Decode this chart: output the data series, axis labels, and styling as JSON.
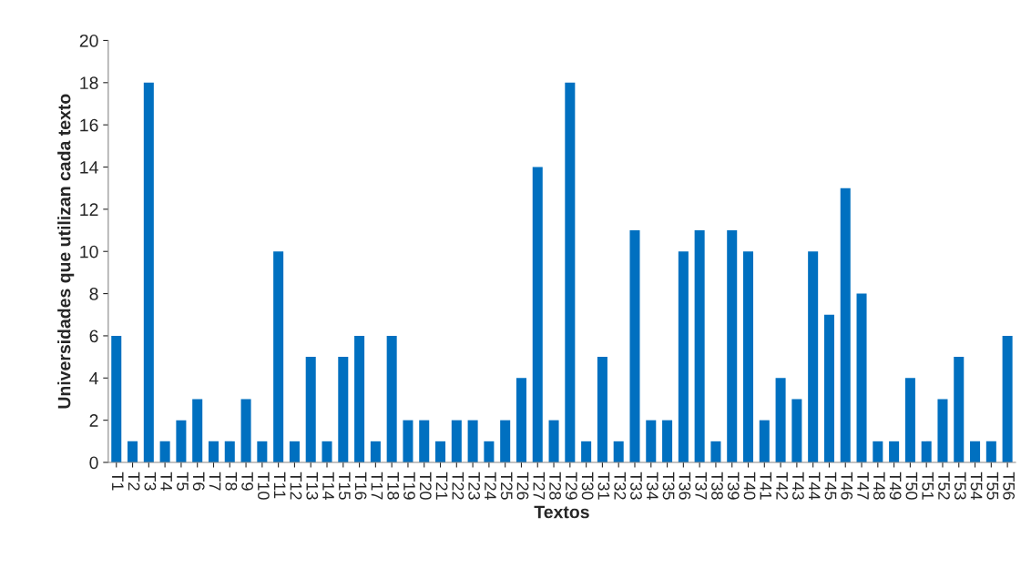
{
  "chart_data": {
    "type": "bar",
    "xlabel": "Textos",
    "ylabel": "Universidades que utilizan cada texto",
    "categories": [
      "T1",
      "T2",
      "T3",
      "T4",
      "T5",
      "T6",
      "T7",
      "T8",
      "T9",
      "T10",
      "T11",
      "T12",
      "T13",
      "T14",
      "T15",
      "T16",
      "T17",
      "T18",
      "T19",
      "T20",
      "T21",
      "T22",
      "T23",
      "T24",
      "T25",
      "T26",
      "T27",
      "T28",
      "T29",
      "T30",
      "T31",
      "T32",
      "T33",
      "T34",
      "T35",
      "T36",
      "T37",
      "T38",
      "T39",
      "T40",
      "T41",
      "T42",
      "T43",
      "T44",
      "T45",
      "T46",
      "T47",
      "T48",
      "T49",
      "T50",
      "T51",
      "T52",
      "T53",
      "T54",
      "T55",
      "T56"
    ],
    "values": [
      6,
      1,
      18,
      1,
      2,
      3,
      1,
      1,
      3,
      1,
      10,
      1,
      5,
      1,
      5,
      6,
      1,
      6,
      2,
      2,
      1,
      2,
      2,
      1,
      2,
      4,
      14,
      2,
      18,
      1,
      5,
      1,
      11,
      2,
      2,
      10,
      11,
      1,
      11,
      10,
      2,
      4,
      3,
      10,
      7,
      13,
      8,
      1,
      1,
      4,
      1,
      3,
      5,
      1,
      1,
      6
    ],
    "color": "#0070c0",
    "ylim": [
      0,
      20
    ],
    "yticks": [
      0,
      2,
      4,
      6,
      8,
      10,
      12,
      14,
      16,
      18,
      20
    ],
    "grid": false,
    "legend": false
  }
}
